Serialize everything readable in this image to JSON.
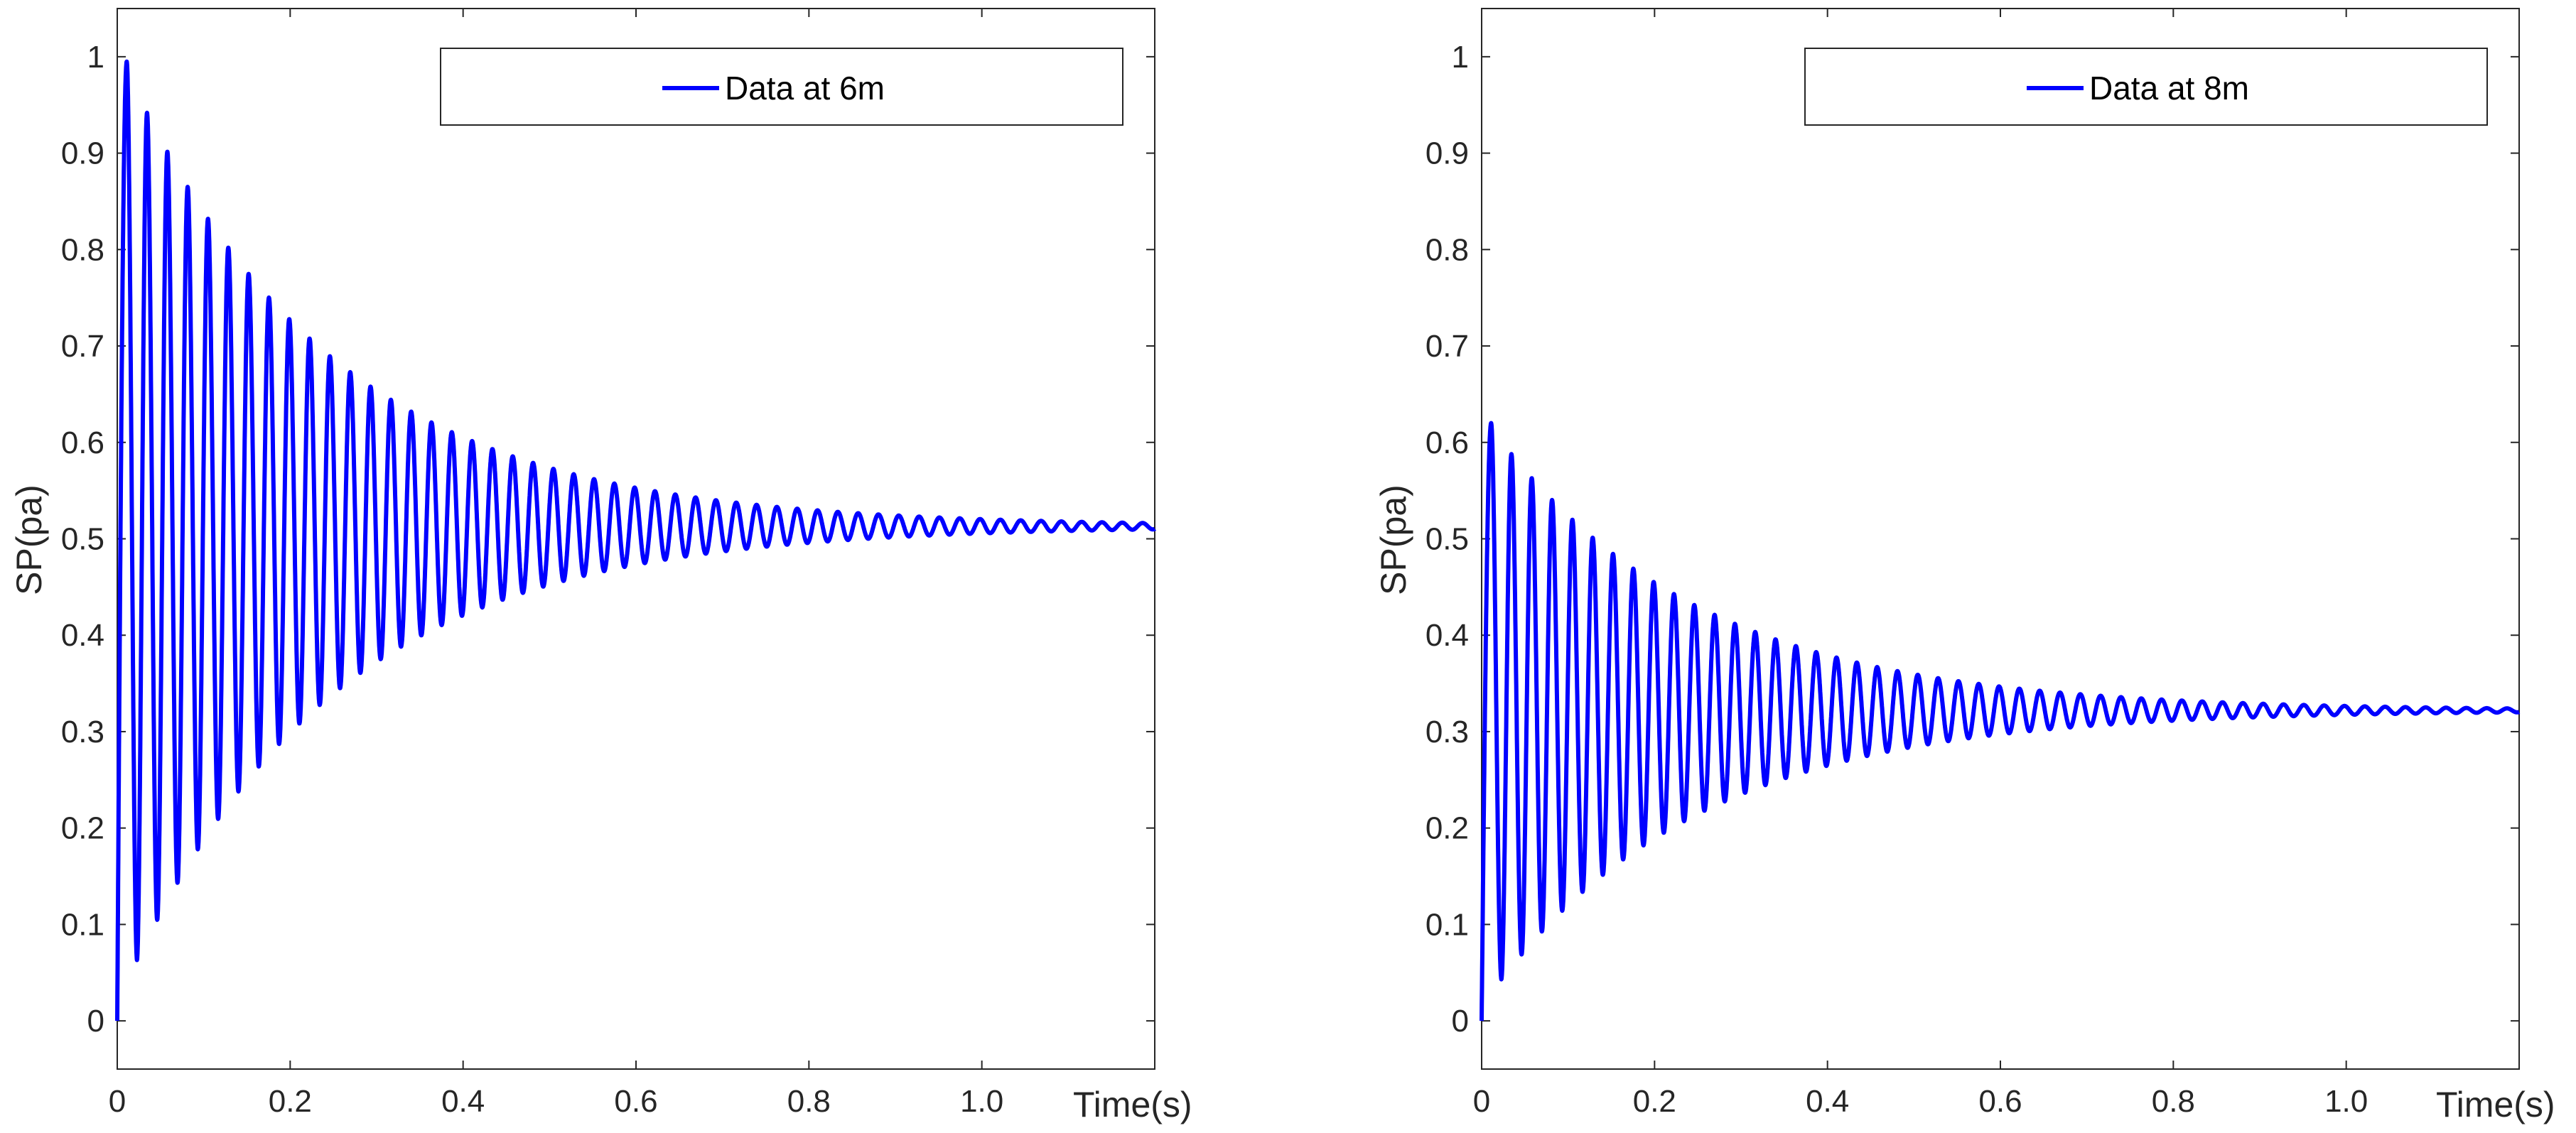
{
  "chart_data": [
    {
      "type": "line",
      "title": "",
      "xlabel": "Time(s)",
      "ylabel": "SP(pa)",
      "xlim": [
        0,
        1.2
      ],
      "ylim": [
        -0.05,
        1.05
      ],
      "xticks": [
        0,
        0.2,
        0.4,
        0.6,
        0.8,
        1.0
      ],
      "xtick_labels": [
        "0",
        "0.2",
        "0.4",
        "0.6",
        "0.8",
        "1.0"
      ],
      "yticks": [
        0,
        0.1,
        0.2,
        0.3,
        0.4,
        0.5,
        0.6,
        0.7,
        0.8,
        0.9,
        1
      ],
      "ytick_labels": [
        "0",
        "0.1",
        "0.2",
        "0.3",
        "0.4",
        "0.5",
        "0.6",
        "0.7",
        "0.8",
        "0.9",
        "1"
      ],
      "grid": false,
      "legend_position": "top-right",
      "series": [
        {
          "name": "Data at 6m",
          "color": "#0000ff",
          "model": "damped-oscillation",
          "steady_value": 0.513,
          "first_peak": {
            "x": 0.011,
            "y": 0.995
          },
          "first_trough": {
            "x": 0.023,
            "y": 0.063
          },
          "period": 0.0235,
          "decay_rate": 4.2,
          "start": [
            0,
            0
          ]
        }
      ]
    },
    {
      "type": "line",
      "title": "",
      "xlabel": "Time(s)",
      "ylabel": "SP(pa)",
      "xlim": [
        0,
        1.2
      ],
      "ylim": [
        -0.05,
        1.05
      ],
      "xticks": [
        0,
        0.2,
        0.4,
        0.6,
        0.8,
        1.0
      ],
      "xtick_labels": [
        "0",
        "0.2",
        "0.4",
        "0.6",
        "0.8",
        "1.0"
      ],
      "yticks": [
        0,
        0.1,
        0.2,
        0.3,
        0.4,
        0.5,
        0.6,
        0.7,
        0.8,
        0.9,
        1
      ],
      "ytick_labels": [
        "0",
        "0.1",
        "0.2",
        "0.3",
        "0.4",
        "0.5",
        "0.6",
        "0.7",
        "0.8",
        "0.9",
        "1"
      ],
      "grid": false,
      "legend_position": "top-right",
      "series": [
        {
          "name": "Data at 8m",
          "color": "#0000ff",
          "model": "damped-oscillation",
          "steady_value": 0.322,
          "first_peak": {
            "x": 0.011,
            "y": 0.62
          },
          "first_trough": {
            "x": 0.023,
            "y": 0.043
          },
          "period": 0.0235,
          "decay_rate": 4.2,
          "start": [
            0,
            0
          ]
        }
      ]
    }
  ]
}
